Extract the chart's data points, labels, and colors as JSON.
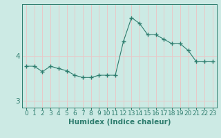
{
  "x": [
    0,
    1,
    2,
    3,
    4,
    5,
    6,
    7,
    8,
    9,
    10,
    11,
    12,
    13,
    14,
    15,
    16,
    17,
    18,
    19,
    20,
    21,
    22,
    23
  ],
  "y": [
    3.77,
    3.77,
    3.65,
    3.77,
    3.72,
    3.67,
    3.57,
    3.52,
    3.52,
    3.57,
    3.57,
    3.57,
    4.32,
    4.85,
    4.72,
    4.47,
    4.47,
    4.37,
    4.27,
    4.27,
    4.12,
    3.87,
    3.87,
    3.87
  ],
  "line_color": "#2e7d6e",
  "marker": "+",
  "marker_size": 4,
  "bg_color": "#cceae4",
  "grid_color": "#e8c8c8",
  "xlabel": "Humidex (Indice chaleur)",
  "ylabel": "",
  "xlim": [
    -0.5,
    23.5
  ],
  "ylim": [
    2.85,
    5.15
  ],
  "yticks": [
    3,
    4
  ],
  "xtick_labels": [
    "0",
    "1",
    "2",
    "3",
    "4",
    "5",
    "6",
    "7",
    "8",
    "9",
    "10",
    "11",
    "12",
    "13",
    "14",
    "15",
    "16",
    "17",
    "18",
    "19",
    "20",
    "21",
    "22",
    "23"
  ],
  "tick_color": "#2e7d6e",
  "label_color": "#2e7d6e",
  "font_size": 6.5,
  "xlabel_fontsize": 7.5
}
